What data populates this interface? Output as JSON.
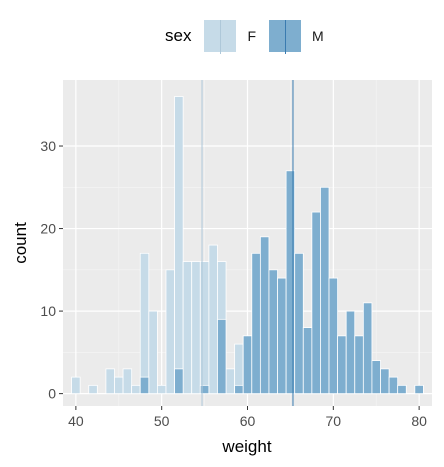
{
  "legend": {
    "title": "sex",
    "items": [
      {
        "label": "F",
        "fill": "#c6dbe8",
        "line": "#aec8d9"
      },
      {
        "label": "M",
        "fill": "#7eaecf",
        "line": "#3a7bb0"
      }
    ]
  },
  "chart_data": {
    "type": "bar",
    "xlabel": "weight",
    "ylabel": "count",
    "xlim": [
      38.5,
      81.5
    ],
    "ylim": [
      -1.5,
      38
    ],
    "x_ticks": [
      40,
      50,
      60,
      70,
      80
    ],
    "y_ticks": [
      0,
      10,
      20,
      30
    ],
    "grid": true,
    "legend_position": "top",
    "bin_width": 1,
    "series": [
      {
        "name": "F",
        "color": "#c6dbe8",
        "mean": 54.7,
        "x": [
          40,
          42,
          44,
          45,
          46,
          47,
          48,
          49,
          50,
          51,
          52,
          53,
          54,
          55,
          56,
          57,
          58,
          59,
          60,
          61,
          62,
          63,
          64,
          65,
          66,
          67,
          68,
          69
        ],
        "values": [
          2,
          1,
          3,
          2,
          3,
          1,
          17,
          10,
          1,
          15,
          36,
          16,
          16,
          16,
          18,
          16,
          3,
          6,
          7,
          1,
          5,
          2,
          4,
          1,
          1,
          1,
          1,
          1
        ]
      },
      {
        "name": "M",
        "color": "#7eaecf",
        "mean": 65.3,
        "x": [
          48,
          52,
          55,
          57,
          59,
          60,
          61,
          62,
          63,
          64,
          65,
          66,
          67,
          68,
          69,
          70,
          71,
          72,
          73,
          74,
          75,
          76,
          77,
          78,
          80
        ],
        "values": [
          2,
          3,
          1,
          9,
          1,
          7,
          17,
          19,
          15,
          14,
          27,
          17,
          8,
          22,
          25,
          14,
          7,
          10,
          7,
          11,
          4,
          3,
          2,
          1,
          1
        ]
      }
    ]
  }
}
